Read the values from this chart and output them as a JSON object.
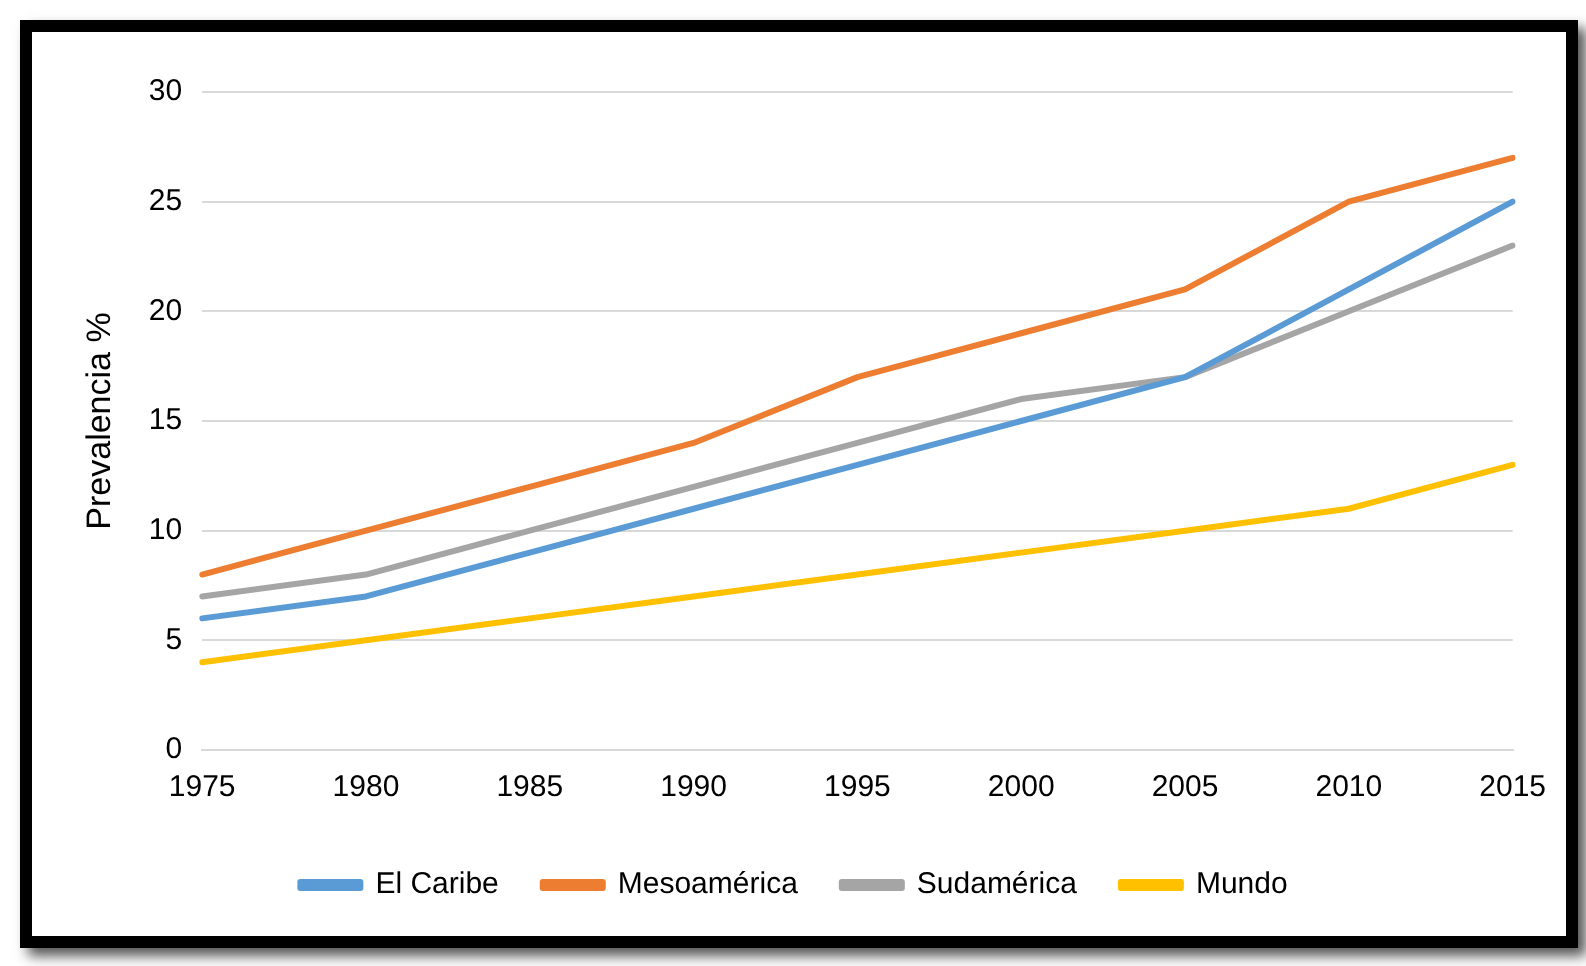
{
  "chart_data": {
    "type": "line",
    "ylabel": "Prevalencia %",
    "categories": [
      "1975",
      "1980",
      "1985",
      "1990",
      "1995",
      "2000",
      "2005",
      "2010",
      "2015"
    ],
    "series": [
      {
        "name": "El Caribe",
        "color": "#5b9bd5",
        "values": [
          6,
          7,
          9,
          11,
          13,
          15,
          17,
          21,
          25
        ]
      },
      {
        "name": "Mesoamérica",
        "color": "#ed7d31",
        "values": [
          8,
          10,
          12,
          14,
          17,
          19,
          21,
          25,
          27
        ]
      },
      {
        "name": "Sudamérica",
        "color": "#a5a5a5",
        "values": [
          7,
          8,
          10,
          12,
          14,
          16,
          17,
          20,
          23
        ]
      },
      {
        "name": "Mundo",
        "color": "#ffc000",
        "values": [
          4,
          5,
          6,
          7,
          8,
          9,
          10,
          11,
          13
        ]
      }
    ],
    "ylim": [
      0,
      30
    ],
    "yticks": [
      0,
      5,
      10,
      15,
      20,
      25,
      30
    ],
    "grid": "y",
    "legend": "bottom",
    "marker": "none",
    "line_style": "solid"
  }
}
